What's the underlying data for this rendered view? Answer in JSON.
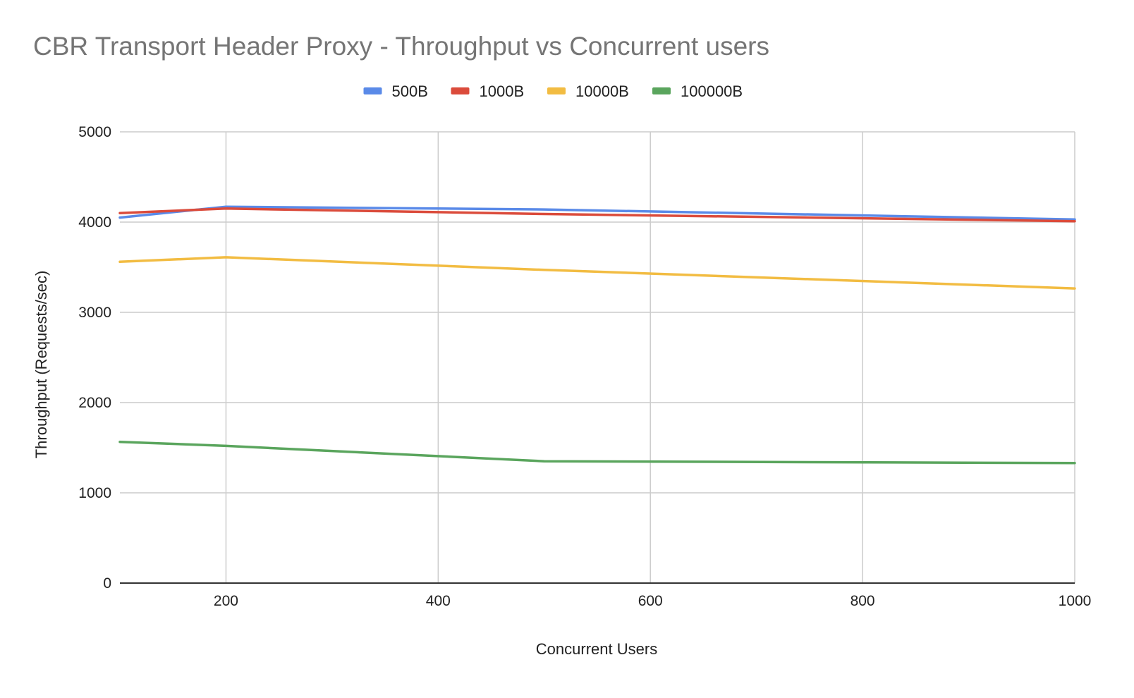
{
  "chart_data": {
    "type": "line",
    "title": "CBR Transport Header Proxy - Throughput vs Concurrent users",
    "xlabel": "Concurrent Users",
    "ylabel": "Throughput (Requests/sec)",
    "xlim": [
      100,
      1000
    ],
    "ylim": [
      0,
      5000
    ],
    "xticks": [
      200,
      400,
      600,
      800,
      1000
    ],
    "yticks": [
      0,
      1000,
      2000,
      3000,
      4000,
      5000
    ],
    "grid": true,
    "legend_position": "top",
    "x": [
      100,
      200,
      500,
      1000
    ],
    "series": [
      {
        "name": "500B",
        "color": "#5a8ae8",
        "values": [
          4050,
          4170,
          4140,
          4030
        ]
      },
      {
        "name": "1000B",
        "color": "#db4b3b",
        "values": [
          4100,
          4150,
          4090,
          4010
        ]
      },
      {
        "name": "10000B",
        "color": "#f2bc42",
        "values": [
          3560,
          3610,
          3470,
          3265
        ]
      },
      {
        "name": "100000B",
        "color": "#5aa55d",
        "values": [
          1565,
          1520,
          1350,
          1330
        ]
      }
    ]
  }
}
